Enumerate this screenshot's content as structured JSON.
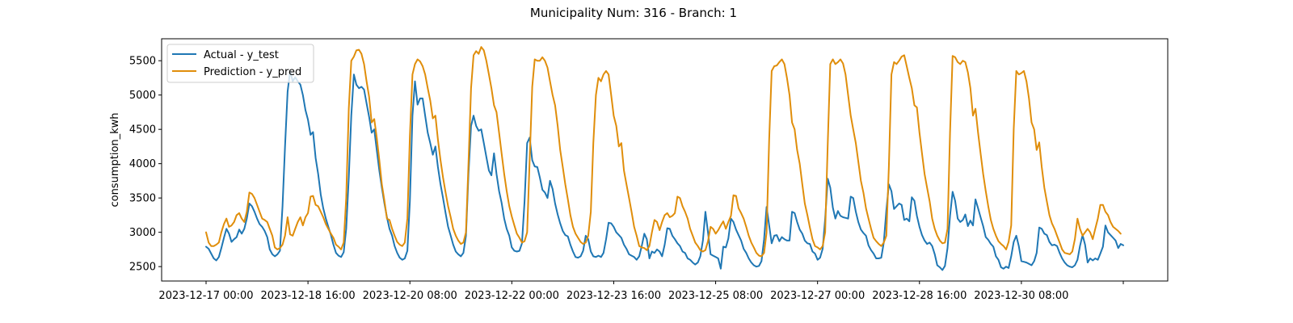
{
  "chart_data": {
    "type": "line",
    "title": "Municipality Num: 316 - Branch: 1",
    "xlabel": "",
    "ylabel": "consumption_kwh",
    "x_tick_labels": [
      "2023-12-17 00:00",
      "2023-12-18 16:00",
      "2023-12-20 08:00",
      "2023-12-22 00:00",
      "2023-12-23 16:00",
      "2023-12-25 08:00",
      "2023-12-27 00:00",
      "2023-12-28 16:00",
      "2023-12-30 08:00",
      ""
    ],
    "y_ticks": [
      2500,
      3000,
      3500,
      4000,
      4500,
      5000,
      5500
    ],
    "ylim": [
      2290,
      5820
    ],
    "x_start": "2023-12-17 00:00",
    "x_step_hours": 1,
    "grid": false,
    "legend_position": "upper left",
    "colors": {
      "actual": "#1f77b4",
      "prediction": "#e08e0b"
    },
    "series": [
      {
        "name": "Actual - y_test",
        "color": "#1f77b4",
        "values": [
          2790,
          2760,
          2690,
          2620,
          2590,
          2640,
          2770,
          2920,
          3050,
          2980,
          2860,
          2900,
          2930,
          3040,
          2980,
          3050,
          3200,
          3420,
          3380,
          3300,
          3200,
          3120,
          3080,
          3020,
          2930,
          2750,
          2680,
          2650,
          2680,
          2730,
          3380,
          4250,
          5050,
          5350,
          5200,
          5260,
          5200,
          5150,
          5000,
          4780,
          4640,
          4420,
          4460,
          4080,
          3850,
          3550,
          3350,
          3200,
          3080,
          2960,
          2820,
          2700,
          2660,
          2640,
          2710,
          3050,
          3800,
          4700,
          5300,
          5150,
          5100,
          5120,
          5080,
          4880,
          4680,
          4450,
          4500,
          4200,
          3900,
          3650,
          3420,
          3220,
          3050,
          2950,
          2800,
          2700,
          2630,
          2600,
          2620,
          2730,
          3450,
          4700,
          5200,
          4860,
          4950,
          4950,
          4700,
          4450,
          4300,
          4130,
          4250,
          3950,
          3700,
          3500,
          3280,
          3080,
          2950,
          2820,
          2720,
          2680,
          2650,
          2700,
          2950,
          3850,
          4550,
          4700,
          4550,
          4480,
          4500,
          4300,
          4100,
          3900,
          3830,
          4150,
          3850,
          3600,
          3430,
          3200,
          3050,
          2950,
          2780,
          2730,
          2720,
          2730,
          2840,
          3450,
          4300,
          4380,
          4050,
          3960,
          3950,
          3800,
          3620,
          3580,
          3500,
          3750,
          3630,
          3420,
          3260,
          3130,
          3020,
          2960,
          2940,
          2820,
          2720,
          2640,
          2630,
          2650,
          2730,
          2950,
          2900,
          2720,
          2650,
          2640,
          2660,
          2640,
          2700,
          2900,
          3140,
          3130,
          3080,
          3000,
          2960,
          2920,
          2820,
          2760,
          2680,
          2660,
          2640,
          2600,
          2650,
          2800,
          2980,
          2900,
          2620,
          2720,
          2700,
          2750,
          2720,
          2650,
          2820,
          3060,
          3050,
          2950,
          2900,
          2840,
          2800,
          2720,
          2700,
          2620,
          2600,
          2560,
          2530,
          2560,
          2650,
          2880,
          3300,
          3000,
          2680,
          2660,
          2640,
          2620,
          2470,
          2790,
          2780,
          2910,
          3200,
          3150,
          3040,
          2960,
          2880,
          2760,
          2700,
          2620,
          2560,
          2520,
          2500,
          2510,
          2580,
          2900,
          3370,
          3100,
          2840,
          2950,
          2960,
          2870,
          2930,
          2900,
          2880,
          2880,
          3300,
          3280,
          3150,
          3040,
          2980,
          2880,
          2840,
          2830,
          2720,
          2690,
          2600,
          2630,
          2760,
          3200,
          3780,
          3650,
          3360,
          3200,
          3310,
          3240,
          3220,
          3210,
          3200,
          3520,
          3500,
          3300,
          3150,
          3040,
          2990,
          2950,
          2810,
          2740,
          2690,
          2620,
          2620,
          2630,
          2850,
          3320,
          3700,
          3600,
          3340,
          3380,
          3420,
          3400,
          3180,
          3200,
          3160,
          3510,
          3460,
          3240,
          3080,
          2960,
          2880,
          2830,
          2850,
          2800,
          2680,
          2520,
          2490,
          2450,
          2510,
          2770,
          3240,
          3590,
          3460,
          3200,
          3150,
          3180,
          3260,
          3090,
          3170,
          3100,
          3480,
          3350,
          3220,
          3090,
          2930,
          2890,
          2830,
          2790,
          2650,
          2600,
          2490,
          2470,
          2500,
          2480,
          2650,
          2860,
          2950,
          2800,
          2580,
          2570,
          2560,
          2540,
          2520,
          2580,
          2700,
          3070,
          3050,
          2980,
          2960,
          2860,
          2810,
          2820,
          2800,
          2700,
          2620,
          2560,
          2520,
          2500,
          2490,
          2520,
          2600,
          2800,
          2960,
          2820,
          2560,
          2620,
          2590,
          2620,
          2600,
          2690,
          2790,
          3100,
          3000,
          2960,
          2920,
          2880,
          2770,
          2830,
          2810
        ]
      },
      {
        "name": "Prediction - y_pred",
        "color": "#e08e0b",
        "values": [
          3000,
          2850,
          2800,
          2800,
          2820,
          2850,
          3000,
          3120,
          3200,
          3080,
          3100,
          3150,
          3250,
          3280,
          3200,
          3150,
          3300,
          3580,
          3560,
          3500,
          3400,
          3300,
          3200,
          3180,
          3150,
          3050,
          2950,
          2780,
          2750,
          2770,
          2820,
          2950,
          3220,
          2970,
          2950,
          3050,
          3150,
          3220,
          3100,
          3220,
          3280,
          3520,
          3530,
          3400,
          3380,
          3300,
          3220,
          3120,
          3050,
          2980,
          2920,
          2820,
          2790,
          2750,
          2850,
          3500,
          4800,
          5500,
          5560,
          5650,
          5660,
          5600,
          5450,
          5200,
          4970,
          4600,
          4650,
          4380,
          4050,
          3700,
          3460,
          3200,
          3180,
          3050,
          2950,
          2860,
          2820,
          2800,
          2850,
          3200,
          4400,
          5300,
          5450,
          5520,
          5490,
          5420,
          5300,
          5100,
          4920,
          4660,
          4700,
          4350,
          4050,
          3800,
          3580,
          3380,
          3220,
          3050,
          2950,
          2880,
          2830,
          2850,
          3000,
          4000,
          5100,
          5580,
          5640,
          5600,
          5700,
          5650,
          5500,
          5300,
          5100,
          4850,
          4750,
          4450,
          4150,
          3850,
          3600,
          3380,
          3230,
          3100,
          2980,
          2920,
          2850,
          2870,
          3000,
          4050,
          5120,
          5520,
          5500,
          5500,
          5550,
          5500,
          5400,
          5200,
          5000,
          4850,
          4550,
          4200,
          3950,
          3700,
          3480,
          3250,
          3080,
          2980,
          2920,
          2860,
          2830,
          2850,
          2950,
          3300,
          4300,
          5000,
          5250,
          5200,
          5300,
          5350,
          5300,
          5000,
          4700,
          4550,
          4250,
          4300,
          3900,
          3700,
          3500,
          3300,
          3080,
          2950,
          2800,
          2780,
          2770,
          2740,
          2800,
          3000,
          3180,
          3150,
          3030,
          3150,
          3250,
          3280,
          3220,
          3240,
          3280,
          3520,
          3500,
          3380,
          3300,
          3200,
          3050,
          2950,
          2850,
          2800,
          2740,
          2720,
          2740,
          2870,
          3080,
          3050,
          2980,
          3030,
          3100,
          3160,
          3050,
          3150,
          3240,
          3540,
          3530,
          3350,
          3280,
          3200,
          3080,
          2950,
          2850,
          2780,
          2700,
          2660,
          2650,
          2700,
          3000,
          4350,
          5350,
          5420,
          5430,
          5480,
          5520,
          5450,
          5250,
          5000,
          4600,
          4500,
          4200,
          4000,
          3700,
          3420,
          3250,
          3070,
          2900,
          2800,
          2780,
          2750,
          2800,
          3000,
          4300,
          5450,
          5520,
          5450,
          5480,
          5520,
          5460,
          5300,
          5000,
          4700,
          4500,
          4300,
          4030,
          3750,
          3580,
          3350,
          3200,
          3050,
          2920,
          2870,
          2830,
          2800,
          2850,
          2950,
          3950,
          5300,
          5480,
          5450,
          5500,
          5560,
          5580,
          5420,
          5250,
          5100,
          4850,
          4820,
          4450,
          4150,
          3850,
          3650,
          3450,
          3200,
          3050,
          2950,
          2880,
          2840,
          2850,
          3050,
          4450,
          5570,
          5550,
          5480,
          5450,
          5500,
          5480,
          5330,
          5100,
          4700,
          4800,
          4450,
          4150,
          3850,
          3600,
          3380,
          3180,
          3050,
          2950,
          2870,
          2830,
          2800,
          2750,
          2860,
          3100,
          4500,
          5350,
          5300,
          5320,
          5350,
          5200,
          4950,
          4600,
          4500,
          4200,
          4310,
          3950,
          3650,
          3450,
          3250,
          3130,
          3050,
          2950,
          2850,
          2750,
          2700,
          2690,
          2680,
          2720,
          2900,
          3200,
          3050,
          2950,
          3000,
          3050,
          3000,
          2900,
          3050,
          3200,
          3400,
          3400,
          3300,
          3250,
          3150,
          3080,
          3050,
          3020,
          2980
        ]
      }
    ]
  }
}
